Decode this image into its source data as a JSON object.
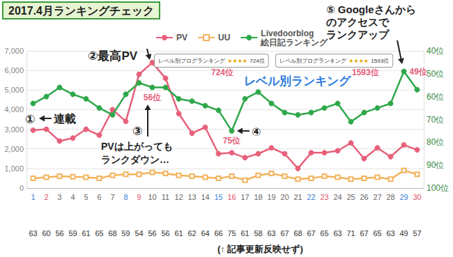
{
  "chart_data": {
    "type": "line",
    "title": "2017.4月ランキングチェック",
    "categories": [
      "1",
      "2",
      "3",
      "4",
      "5",
      "6",
      "7",
      "8",
      "9",
      "10",
      "11",
      "12",
      "13",
      "14",
      "15",
      "16",
      "17",
      "18",
      "19",
      "20",
      "21",
      "22",
      "23",
      "24",
      "25",
      "26",
      "27",
      "28",
      "29",
      "30"
    ],
    "series": [
      {
        "name": "PV",
        "color": "#e8607a",
        "marker": "circle",
        "values": [
          2950,
          3000,
          2400,
          2550,
          3000,
          2700,
          4000,
          3400,
          5800,
          6400,
          5600,
          3800,
          2800,
          3100,
          1750,
          1800,
          1550,
          1750,
          2050,
          1750,
          1000,
          1800,
          1800,
          1900,
          2300,
          1500,
          2050,
          1600,
          2200,
          1950
        ]
      },
      {
        "name": "UU",
        "color": "#f2b35c",
        "marker": "open_square",
        "values": [
          500,
          550,
          600,
          580,
          550,
          500,
          650,
          700,
          700,
          800,
          750,
          650,
          600,
          550,
          500,
          600,
          400,
          650,
          750,
          600,
          450,
          500,
          600,
          550,
          450,
          500,
          550,
          450,
          900,
          700
        ]
      },
      {
        "name": "Livedoorblog 絵日記ランキング",
        "color": "#2ea84a",
        "marker": "circle",
        "axis": "y2",
        "values": [
          63,
          60,
          56,
          59,
          61,
          65,
          68,
          59,
          54,
          56,
          56,
          61,
          62,
          64,
          66,
          75,
          61,
          58,
          63,
          67,
          68,
          67,
          65,
          63,
          71,
          67,
          65,
          63,
          49,
          57
        ],
        "value_labels": [
          null,
          null,
          null,
          null,
          null,
          null,
          null,
          null,
          null,
          "56位",
          null,
          null,
          null,
          null,
          null,
          "75位",
          null,
          null,
          null,
          null,
          null,
          null,
          null,
          null,
          null,
          null,
          null,
          null,
          "49位",
          null
        ]
      }
    ],
    "ylim": [
      0,
      7000
    ],
    "yticks": [
      0,
      {
        "value": 1000,
        "label": "1,000"
      },
      {
        "value": 2000,
        "label": "2,000"
      },
      {
        "value": 3000,
        "label": "3,000"
      },
      {
        "value": 4000,
        "label": "4,000"
      },
      {
        "value": 5000,
        "label": "5,000"
      },
      {
        "value": 6000,
        "label": "6,000"
      },
      {
        "value": 7000,
        "label": "7,000"
      }
    ],
    "y2lim": [
      100,
      40
    ],
    "y2ticks": [
      {
        "value": 40,
        "label": "40位"
      },
      {
        "value": 50,
        "label": "50位"
      },
      {
        "value": 60,
        "label": "60位"
      },
      {
        "value": 70,
        "label": "70位"
      },
      {
        "value": 80,
        "label": "80位"
      },
      {
        "value": 90,
        "label": "90位"
      },
      {
        "value": 100,
        "label": "100位"
      }
    ],
    "grid": true,
    "legend": "top",
    "annotations": [
      "①",
      "連載",
      "②最高PV",
      "③",
      "PVは上がっても",
      "ランクダウン…",
      "④",
      "⑤ Googleさんから\nのアクセスで\nランクアップ",
      "レベル別ランキング",
      "(↑ 記事更新反映せず)"
    ],
    "level_rankings": [
      {
        "label": "レベル別ブログランキング",
        "stars": "★★★★",
        "rank": "724位"
      },
      {
        "label": "レベル別ブログランキング",
        "stars": "★★★★",
        "rank": "1593位"
      }
    ]
  }
}
